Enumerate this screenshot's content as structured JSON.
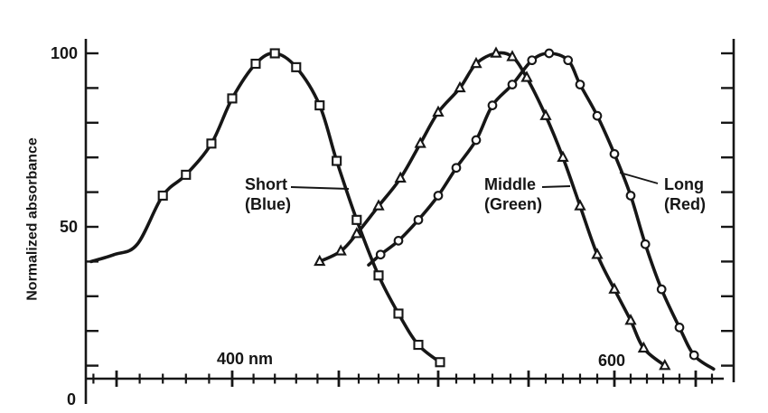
{
  "figure": {
    "background": "#ffffff",
    "ink": "#161616",
    "marker_fill": "#ffffff"
  },
  "y_axis": {
    "label": "Normalized absorbance",
    "ticks": [
      {
        "value": 100,
        "label": "100"
      },
      {
        "value": 50,
        "label": "50"
      },
      {
        "value": 0,
        "label": "0"
      }
    ]
  },
  "x_axis": {
    "unit": "nm",
    "labeled_ticks": [
      {
        "nm": 400,
        "label": "400 nm"
      },
      {
        "nm": 600,
        "label": "600"
      }
    ]
  },
  "annotations": [
    {
      "id": "short",
      "line1": "Short",
      "line2": "(Blue)"
    },
    {
      "id": "middle",
      "line1": "Middle",
      "line2": "(Green)"
    },
    {
      "id": "long",
      "line1": "Long",
      "line2": "(Red)"
    }
  ],
  "chart_data": {
    "type": "line",
    "title": "",
    "xlabel": "",
    "x_unit": "nm",
    "ylabel": "Normalized absorbance",
    "ylim": [
      0,
      105
    ],
    "x_range_nm": [
      337,
      663
    ],
    "x_major_ticks_nm": [
      350,
      400,
      450,
      500,
      550,
      600,
      650
    ],
    "x_minor_tick_step_nm": 10,
    "y_tick_step": 10,
    "grid": false,
    "legend": "inline labels with leader lines",
    "series": [
      {
        "name": "Short (Blue)",
        "marker": "square",
        "peak_nm": 420,
        "line_start": [
          [
            339,
            40
          ],
          [
            349,
            42
          ],
          [
            359,
            45
          ]
        ],
        "points": [
          [
            370,
            59
          ],
          [
            380,
            65
          ],
          [
            391,
            74
          ],
          [
            400,
            87
          ],
          [
            411,
            97
          ],
          [
            420,
            100
          ],
          [
            430,
            96
          ],
          [
            441,
            85
          ],
          [
            449,
            69
          ],
          [
            459,
            52
          ],
          [
            470,
            36
          ],
          [
            480,
            25
          ],
          [
            490,
            16
          ],
          [
            501,
            11
          ]
        ],
        "line_end": []
      },
      {
        "name": "Middle (Green)",
        "marker": "triangle",
        "peak_nm": 532,
        "line_start": [],
        "points": [
          [
            441,
            40
          ],
          [
            451,
            43
          ],
          [
            459,
            48
          ],
          [
            470,
            56
          ],
          [
            481,
            64
          ],
          [
            491,
            74
          ],
          [
            500,
            83
          ],
          [
            512,
            90
          ],
          [
            521,
            97
          ],
          [
            532,
            100
          ],
          [
            541,
            99
          ],
          [
            549,
            93
          ],
          [
            560,
            82
          ],
          [
            570,
            70
          ],
          [
            580,
            56
          ],
          [
            590,
            42
          ],
          [
            600,
            32
          ],
          [
            610,
            23
          ],
          [
            618,
            15
          ],
          [
            631,
            10
          ]
        ],
        "line_end": []
      },
      {
        "name": "Long (Red)",
        "marker": "circle",
        "peak_nm": 562,
        "line_start": [
          [
            465,
            39
          ]
        ],
        "points": [
          [
            471,
            42
          ],
          [
            480,
            46
          ],
          [
            490,
            52
          ],
          [
            500,
            59
          ],
          [
            510,
            67
          ],
          [
            521,
            75
          ],
          [
            530,
            85
          ],
          [
            541,
            91
          ],
          [
            552,
            98
          ],
          [
            562,
            100
          ],
          [
            573,
            98
          ],
          [
            580,
            91
          ],
          [
            590,
            82
          ],
          [
            600,
            71
          ],
          [
            610,
            59
          ],
          [
            619,
            45
          ],
          [
            629,
            32
          ],
          [
            640,
            21
          ],
          [
            649,
            13
          ]
        ],
        "line_end": [
          [
            661,
            9
          ]
        ]
      }
    ]
  }
}
